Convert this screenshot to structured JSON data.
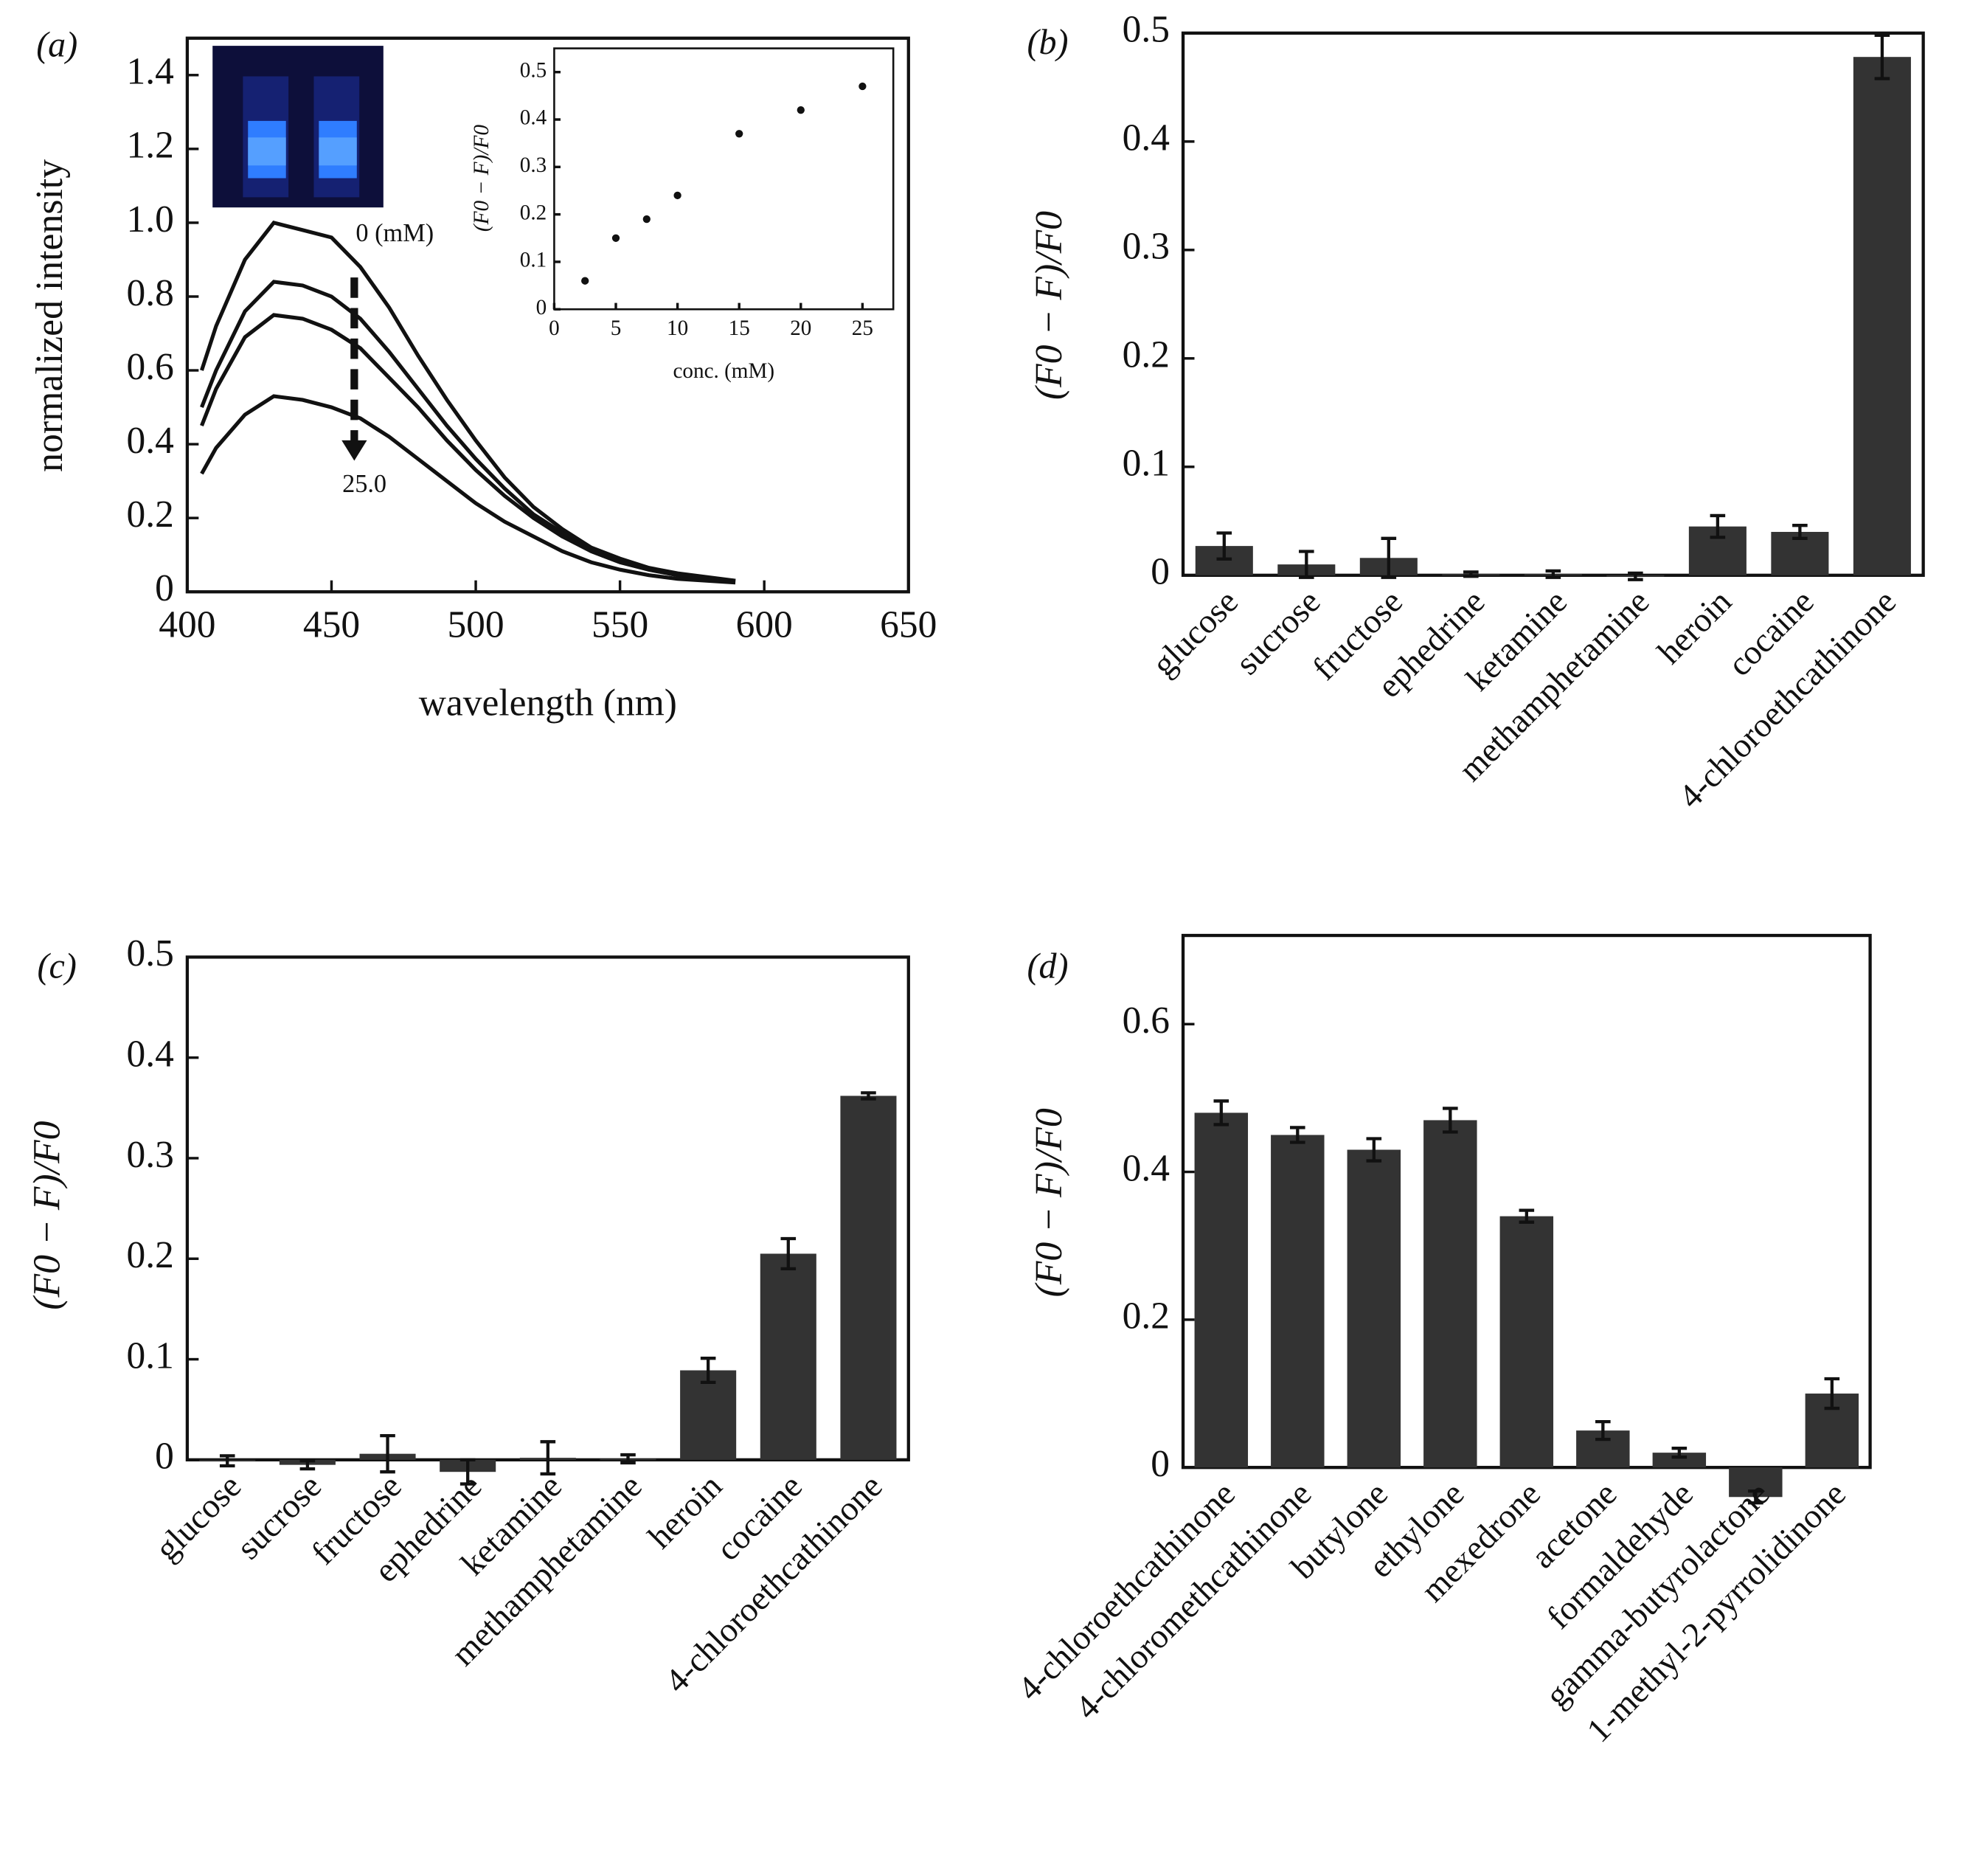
{
  "chart_data": [
    {
      "type": "line",
      "label": "(a)",
      "xlabel": "wavelength (nm)",
      "ylabel": "normalized intensity",
      "x": [
        405,
        410,
        420,
        430,
        440,
        450,
        460,
        470,
        480,
        490,
        500,
        510,
        520,
        530,
        540,
        550,
        560,
        570,
        580,
        590
      ],
      "series": [
        {
          "color": "#111111",
          "values": [
            0.6,
            0.72,
            0.9,
            1.0,
            0.98,
            0.96,
            0.88,
            0.77,
            0.64,
            0.52,
            0.41,
            0.31,
            0.23,
            0.17,
            0.12,
            0.09,
            0.065,
            0.05,
            0.04,
            0.03
          ]
        },
        {
          "color": "#111111",
          "values": [
            0.5,
            0.6,
            0.76,
            0.84,
            0.83,
            0.8,
            0.74,
            0.65,
            0.55,
            0.45,
            0.36,
            0.28,
            0.21,
            0.16,
            0.11,
            0.08,
            0.06,
            0.045,
            0.035,
            0.03
          ]
        },
        {
          "color": "#111111",
          "values": [
            0.45,
            0.55,
            0.69,
            0.75,
            0.74,
            0.71,
            0.66,
            0.58,
            0.5,
            0.41,
            0.33,
            0.26,
            0.2,
            0.15,
            0.11,
            0.08,
            0.06,
            0.045,
            0.035,
            0.03
          ]
        },
        {
          "color": "#111111",
          "values": [
            0.32,
            0.39,
            0.48,
            0.53,
            0.52,
            0.5,
            0.47,
            0.42,
            0.36,
            0.3,
            0.24,
            0.19,
            0.15,
            0.11,
            0.08,
            0.06,
            0.045,
            0.035,
            0.03,
            0.025
          ]
        }
      ],
      "xlim": [
        400,
        650
      ],
      "xticks": [
        400,
        450,
        500,
        550,
        600,
        650
      ],
      "ylim": [
        0,
        1.5
      ],
      "yticks": [
        0,
        0.2,
        0.4,
        0.6,
        0.8,
        {
          "value": 1,
          "label": "1.0"
        },
        1.2,
        1.4
      ],
      "annotations": [
        "0 (mM)",
        "25.0"
      ]
    },
    {
      "type": "scatter",
      "xlabel": "conc. (mM)",
      "ylabel": "(F0 − F)/F0",
      "x": [
        2.5,
        5,
        7.5,
        10,
        15,
        20,
        25
      ],
      "values": [
        0.06,
        0.15,
        0.19,
        0.24,
        0.37,
        0.42,
        0.47
      ],
      "color": "#111111",
      "xlim": [
        0,
        27.5
      ],
      "xticks": [
        0,
        5,
        10,
        15,
        20,
        25
      ],
      "ylim": [
        0,
        0.55
      ],
      "yticks": [
        0,
        0.1,
        0.2,
        0.3,
        0.4,
        0.5
      ]
    },
    {
      "type": "bar",
      "label": "(b)",
      "ylabel": "(F0 − F)/F0",
      "categories": [
        "glucose",
        "sucrose",
        "fructose",
        "ephedrine",
        "ketamine",
        "methamphetamine",
        "heroin",
        "cocaine",
        "4-chloroethcathinone"
      ],
      "values": [
        0.027,
        0.01,
        0.016,
        0.001,
        0.001,
        -0.001,
        0.045,
        0.04,
        0.478
      ],
      "errors": [
        0.012,
        0.012,
        0.018,
        0.002,
        0.003,
        0.003,
        0.01,
        0.006,
        0.02
      ],
      "color": "#333333",
      "ylim": [
        0,
        0.5
      ],
      "yticks": [
        0,
        0.1,
        0.2,
        0.3,
        0.4,
        0.5
      ]
    },
    {
      "type": "bar",
      "label": "(c)",
      "ylabel": "(F0 − F)/F0",
      "categories": [
        "glucose",
        "sucrose",
        "fructose",
        "ephedrine",
        "ketamine",
        "methamphetamine",
        "heroin",
        "cocaine",
        "4-chloroethcathinone"
      ],
      "values": [
        -0.001,
        -0.005,
        0.006,
        -0.012,
        0.002,
        0.001,
        0.089,
        0.205,
        0.362
      ],
      "errors": [
        0.005,
        0.004,
        0.018,
        0.012,
        0.016,
        0.004,
        0.012,
        0.015,
        0.003
      ],
      "color": "#333333",
      "ylim": [
        0,
        0.5
      ],
      "yticks": [
        0,
        0.1,
        0.2,
        0.3,
        0.4,
        0.5
      ]
    },
    {
      "type": "bar",
      "label": "(d)",
      "ylabel": "(F0 − F)/F0",
      "categories": [
        "4-chloroethcathinone",
        "4-chloromethcathinone",
        "butylone",
        "ethylone",
        "mexedrone",
        "acetone",
        "formaldehyde",
        "gamma-butyrolactone",
        "1-methyl-2-pyrrolidinone"
      ],
      "values": [
        0.48,
        0.45,
        0.43,
        0.47,
        0.34,
        0.05,
        0.02,
        -0.04,
        0.1
      ],
      "errors": [
        0.016,
        0.01,
        0.015,
        0.016,
        0.008,
        0.012,
        0.006,
        0.008,
        0.02
      ],
      "color": "#333333",
      "ylim": [
        0,
        0.72
      ],
      "yticks": [
        0,
        0.2,
        0.4,
        0.6
      ]
    }
  ]
}
